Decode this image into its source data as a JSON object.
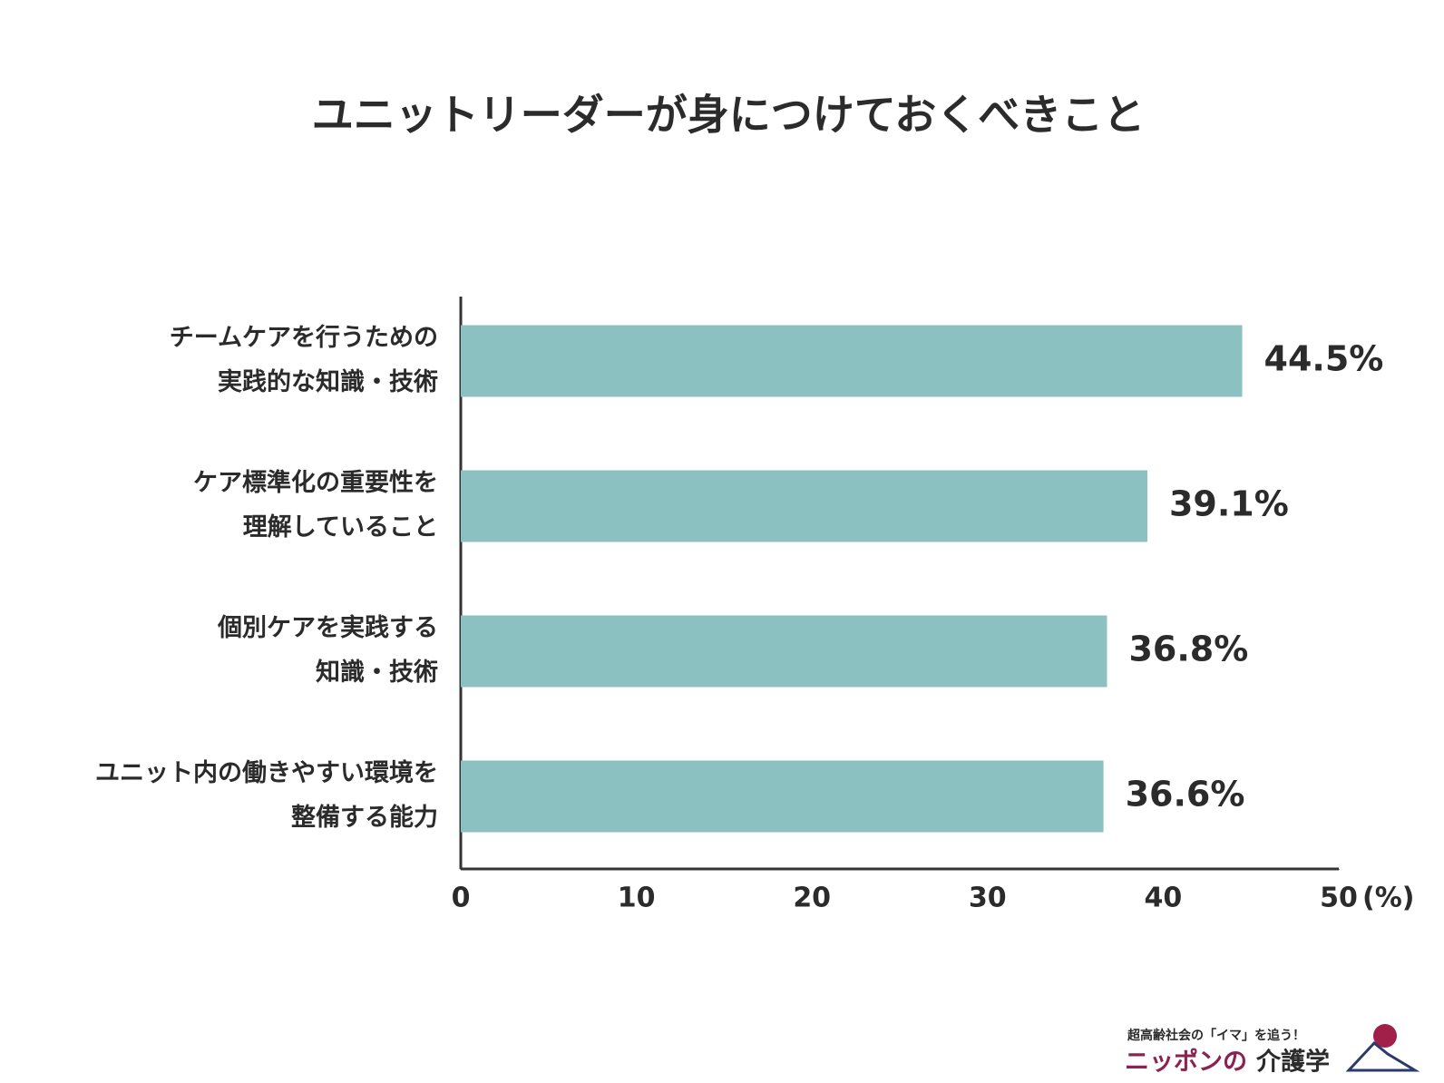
{
  "chart_data": {
    "type": "bar",
    "orientation": "horizontal",
    "title": "ユニットリーダーが身につけておくべきこと",
    "categories": [
      [
        "チームケアを行うための",
        "実践的な知識・技術"
      ],
      [
        "ケア標準化の重要性を",
        "理解していること"
      ],
      [
        "個別ケアを実践する",
        "知識・技術"
      ],
      [
        "ユニット内の働きやすい環境を",
        "整備する能力"
      ]
    ],
    "values": [
      44.5,
      39.1,
      36.8,
      36.6
    ],
    "value_labels": [
      "44.5%",
      "39.1%",
      "36.8%",
      "36.6%"
    ],
    "color": "#8bc1c0",
    "xlim": [
      0,
      50
    ],
    "xticks": [
      0,
      10,
      20,
      30,
      40,
      50
    ],
    "x_label": "(%)"
  },
  "logo": {
    "tagline": "超高齢社会の「イマ」を追う！",
    "name": [
      "ニッポンの",
      "介護学"
    ]
  }
}
